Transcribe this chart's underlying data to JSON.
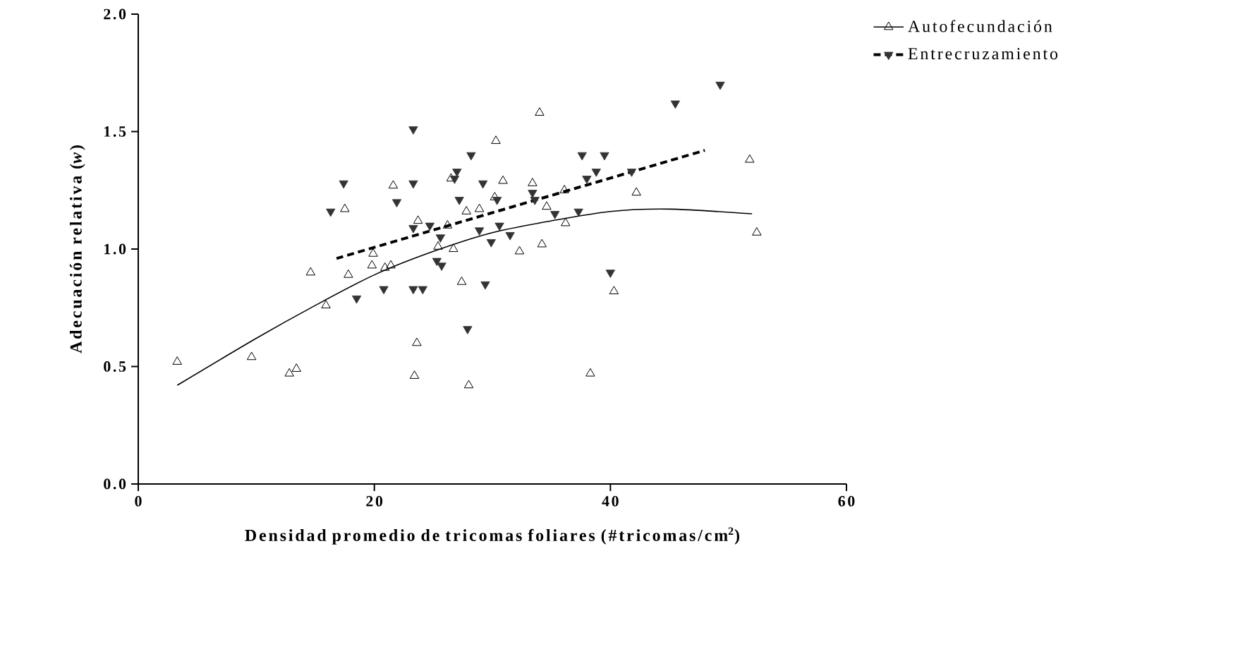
{
  "chart_data": {
    "type": "scatter",
    "xlabel": "Densidad promedio de tricomas foliares (#tricomas/cm$^{2}$)",
    "ylabel": "Adecuación relativa (*w*)",
    "xlim": [
      0,
      60
    ],
    "ylim": [
      0,
      2
    ],
    "xticks": [
      0,
      20,
      40,
      60
    ],
    "yticks": [
      {
        "value": 0,
        "label": "0.0"
      },
      {
        "value": 0.5,
        "label": "0.5"
      },
      {
        "value": 1,
        "label": "1.0"
      },
      {
        "value": 1.5,
        "label": "1.5"
      },
      {
        "value": 2,
        "label": "2.0"
      }
    ],
    "grid": false,
    "legend": "top right",
    "series": [
      {
        "name": "Autofecundación",
        "marker": "triangle",
        "color": "#000000",
        "x": [
          3.3,
          9.6,
          12.8,
          13.4,
          14.6,
          15.9,
          17.5,
          17.8,
          19.9,
          19.8,
          20.9,
          21.4,
          21.6,
          34.0,
          30.3,
          26.5,
          30.9,
          33.4,
          36.1,
          42.2,
          30.2,
          27.8,
          28.9,
          23.7,
          26.2,
          34.6,
          36.2,
          34.2,
          32.3,
          26.7,
          25.4,
          27.4,
          40.3,
          23.6,
          23.4,
          28.0,
          38.3,
          51.8,
          52.4
        ],
        "values": [
          0.52,
          0.54,
          0.47,
          0.49,
          0.9,
          0.76,
          1.17,
          0.89,
          0.98,
          0.93,
          0.92,
          0.93,
          1.27,
          1.58,
          1.46,
          1.3,
          1.29,
          1.28,
          1.25,
          1.24,
          1.22,
          1.16,
          1.17,
          1.12,
          1.1,
          1.18,
          1.11,
          1.02,
          0.99,
          1.0,
          1.01,
          0.86,
          0.82,
          0.6,
          0.46,
          0.42,
          0.47,
          1.38,
          1.07
        ]
      },
      {
        "type": "line",
        "line_style": "solid",
        "marker": "none",
        "color": "#000000",
        "x": [
          3.3,
          10,
          15,
          20,
          25,
          30,
          35,
          40,
          45,
          52
        ],
        "values": [
          0.42,
          0.62,
          0.76,
          0.89,
          0.99,
          1.07,
          1.12,
          1.16,
          1.17,
          1.15
        ]
      },
      {
        "name": "Entrecruzamiento",
        "marker": "triangle-down",
        "color": "#333333",
        "x": [
          17.4,
          16.3,
          18.5,
          20.8,
          21.9,
          23.3,
          28.2,
          27.0,
          26.8,
          23.3,
          29.2,
          27.2,
          30.4,
          33.4,
          33.6,
          37.6,
          39.5,
          38.8,
          38.0,
          41.8,
          23.3,
          24.7,
          25.6,
          28.9,
          29.9,
          30.6,
          31.5,
          35.3,
          37.3,
          25.3,
          25.7,
          23.3,
          24.1,
          29.4,
          27.9,
          40.0,
          45.5,
          49.3
        ],
        "values": [
          1.28,
          1.16,
          0.79,
          0.83,
          1.2,
          1.51,
          1.4,
          1.33,
          1.3,
          1.28,
          1.28,
          1.21,
          1.21,
          1.24,
          1.21,
          1.4,
          1.4,
          1.33,
          1.3,
          1.33,
          1.09,
          1.1,
          1.05,
          1.08,
          1.03,
          1.1,
          1.06,
          1.15,
          1.16,
          0.95,
          0.93,
          0.83,
          0.83,
          0.85,
          0.66,
          0.9,
          1.62,
          1.7
        ]
      },
      {
        "type": "line",
        "line_style": "dashed",
        "marker": "none",
        "color": "#000000",
        "x": [
          16.8,
          48.0
        ],
        "values": [
          0.96,
          1.42
        ]
      }
    ]
  }
}
